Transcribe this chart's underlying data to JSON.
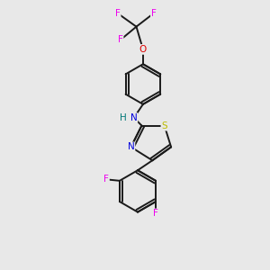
{
  "bg_color": "#e8e8e8",
  "bond_color": "#1a1a1a",
  "bond_width": 1.4,
  "atom_colors": {
    "F": "#ee00ee",
    "O": "#dd0000",
    "N": "#0000dd",
    "S": "#bbbb00",
    "H": "#007777",
    "C": "#1a1a1a"
  },
  "figsize": [
    3.0,
    3.0
  ],
  "dpi": 100
}
